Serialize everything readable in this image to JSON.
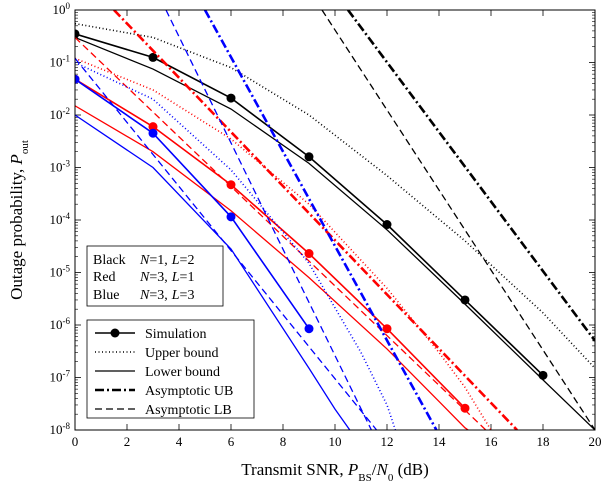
{
  "chart_data": {
    "type": "line",
    "xlabel": "Transmit SNR, P_BS/N_0 (dB)",
    "xlabel_parts": {
      "pre": "Transmit SNR, ",
      "p": "P",
      "bs": "BS",
      "slash": "/",
      "n": "N",
      "zero": "0",
      "post": " (dB)"
    },
    "ylabel": "Outage probability, P_out",
    "ylabel_parts": {
      "pre": "Outage probability, ",
      "p": "P",
      "sub": "out"
    },
    "xlim": [
      0,
      20
    ],
    "ylim_log10": [
      -8,
      0
    ],
    "y_scale": "log",
    "x_ticks": [
      0,
      2,
      4,
      6,
      8,
      10,
      12,
      14,
      16,
      18,
      20
    ],
    "y_ticks": [
      {
        "exp": 0,
        "base": "10",
        "sup": "0"
      },
      {
        "exp": -1,
        "base": "10",
        "sup": "-1"
      },
      {
        "exp": -2,
        "base": "10",
        "sup": "-2"
      },
      {
        "exp": -3,
        "base": "10",
        "sup": "-3"
      },
      {
        "exp": -4,
        "base": "10",
        "sup": "-4"
      },
      {
        "exp": -5,
        "base": "10",
        "sup": "-5"
      },
      {
        "exp": -6,
        "base": "10",
        "sup": "-6"
      },
      {
        "exp": -7,
        "base": "10",
        "sup": "-7"
      },
      {
        "exp": -8,
        "base": "10",
        "sup": "-8"
      }
    ],
    "colors": {
      "black": "#000000",
      "red": "#ff0000",
      "blue": "#0000ff"
    },
    "config_box": [
      {
        "color": "Black",
        "n": "N",
        "n_val": "=1,",
        "l": "L",
        "l_val": "=2"
      },
      {
        "color": "Red",
        "n": "N",
        "n_val": "=3,",
        "l": "L",
        "l_val": "=1"
      },
      {
        "color": "Blue",
        "n": "N",
        "n_val": "=3,",
        "l": "L",
        "l_val": "=3"
      }
    ],
    "legend": {
      "placement": "bottom-left",
      "entries": [
        {
          "label": "Simulation",
          "style": "sim"
        },
        {
          "label": "Upper bound",
          "style": "dotted"
        },
        {
          "label": "Lower bound",
          "style": "solid"
        },
        {
          "label": "Asymptotic UB",
          "style": "dashdot"
        },
        {
          "label": "Asymptotic LB",
          "style": "dashed"
        }
      ]
    },
    "series": [
      {
        "config": "black",
        "kind": "simulation",
        "x": [
          0,
          3,
          6,
          9,
          12,
          15,
          18
        ],
        "y": [
          0.35,
          0.125,
          0.021,
          0.0016,
          8.2e-05,
          3e-06,
          1.1e-07
        ]
      },
      {
        "config": "black",
        "kind": "upper_bound",
        "x": [
          0,
          3,
          6,
          9,
          12,
          15,
          18,
          20
        ],
        "y": [
          0.55,
          0.3,
          0.08,
          0.01,
          0.0007,
          4e-05,
          1.7e-06,
          1.5e-07
        ]
      },
      {
        "config": "black",
        "kind": "lower_bound",
        "x": [
          0,
          3,
          6,
          9,
          12,
          15,
          18,
          20
        ],
        "y": [
          0.3,
          0.075,
          0.013,
          0.0012,
          6.5e-05,
          2.5e-06,
          9e-08,
          1e-08
        ]
      },
      {
        "config": "black",
        "kind": "asymptotic_ub",
        "x": [
          10.5,
          20
        ],
        "y": [
          1,
          5e-07
        ]
      },
      {
        "config": "black",
        "kind": "asymptotic_lb",
        "x": [
          9.5,
          20
        ],
        "y": [
          1,
          1e-08
        ]
      },
      {
        "config": "red",
        "kind": "simulation",
        "x": [
          0,
          3,
          6,
          9,
          12,
          15
        ],
        "y": [
          0.048,
          0.006,
          0.00047,
          2.3e-05,
          8.5e-07,
          2.6e-08
        ]
      },
      {
        "config": "red",
        "kind": "upper_bound",
        "x": [
          0,
          3,
          6,
          9,
          12,
          14,
          15,
          16
        ],
        "y": [
          0.12,
          0.03,
          0.0035,
          0.0002,
          5e-06,
          3e-07,
          6.5e-08,
          1e-08
        ]
      },
      {
        "config": "red",
        "kind": "lower_bound",
        "x": [
          0,
          3,
          6,
          9,
          12,
          14,
          15,
          16
        ],
        "y": [
          0.015,
          0.002,
          0.00015,
          8e-06,
          3.5e-07,
          3.5e-08,
          1.1e-08,
          5e-09
        ]
      },
      {
        "config": "red",
        "kind": "asymptotic_ub",
        "x": [
          1.5,
          17
        ],
        "y": [
          1,
          1e-08
        ]
      },
      {
        "config": "red",
        "kind": "asymptotic_lb",
        "x": [
          0,
          15.8
        ],
        "y": [
          0.3,
          1e-08
        ]
      },
      {
        "config": "blue",
        "kind": "simulation",
        "x": [
          0,
          3,
          6,
          9
        ],
        "y": [
          0.048,
          0.0045,
          0.000115,
          8.5e-07
        ]
      },
      {
        "config": "blue",
        "kind": "upper_bound",
        "x": [
          0,
          3,
          6,
          9,
          11,
          12,
          13
        ],
        "y": [
          0.1,
          0.02,
          0.0009,
          1.5e-05,
          3e-07,
          3e-08,
          1e-09
        ]
      },
      {
        "config": "blue",
        "kind": "lower_bound",
        "x": [
          0,
          3,
          6,
          9,
          10,
          11
        ],
        "y": [
          0.01,
          0.001,
          2.8e-05,
          1.5e-07,
          2.5e-08,
          5e-09
        ]
      },
      {
        "config": "blue",
        "kind": "asymptotic_ub",
        "x": [
          5,
          13.9
        ],
        "y": [
          1,
          1e-08
        ]
      },
      {
        "config": "blue",
        "kind": "asymptotic_lb",
        "x": [
          3.5,
          11.4
        ],
        "y": [
          1,
          1e-08
        ]
      },
      {
        "config": "blue",
        "kind": "asymptotic_lb",
        "x": [
          0,
          11.6
        ],
        "y": [
          0.12,
          1e-08
        ]
      }
    ]
  }
}
